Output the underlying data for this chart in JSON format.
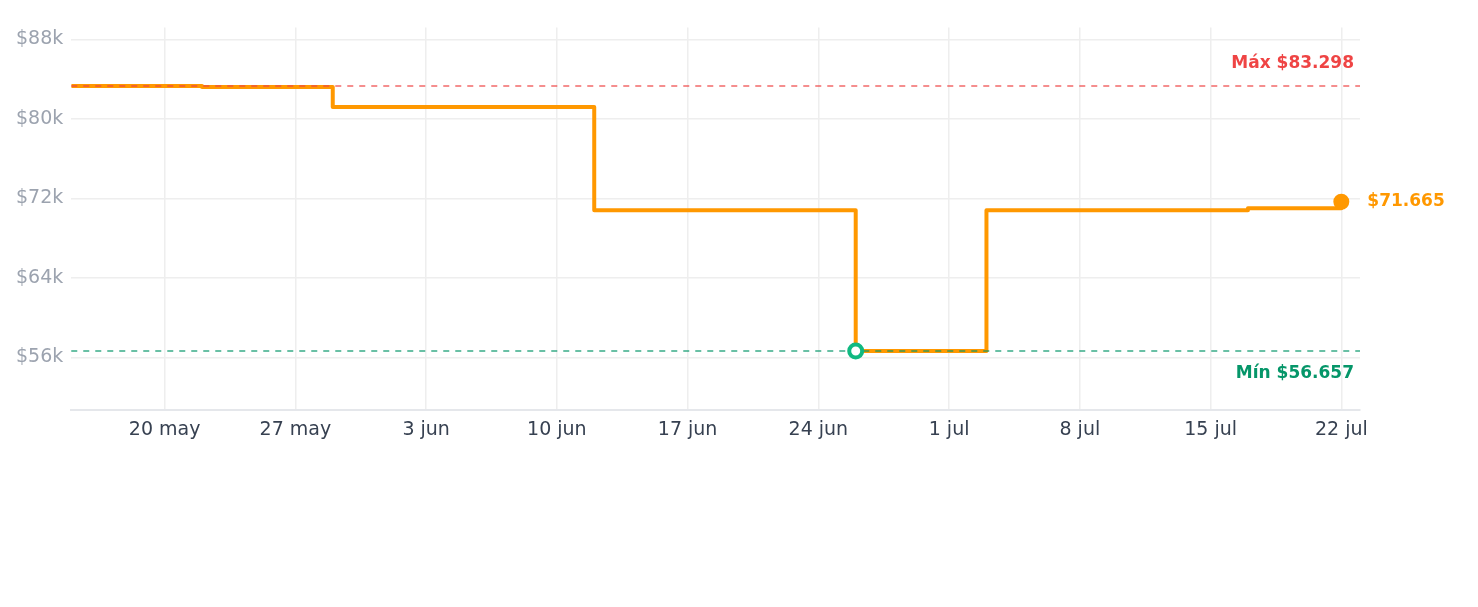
{
  "chart_data": {
    "type": "step",
    "x": [
      "--05-15",
      "--05-22",
      "--05-29",
      "--06-12",
      "--06-26",
      "--07-03",
      "--07-17",
      "--07-22"
    ],
    "series": [
      {
        "color": "#ff9800",
        "values": [
          83298,
          83200,
          81200,
          70800,
          56657,
          70800,
          71000,
          71665
        ],
        "value_labels": [
          null,
          null,
          null,
          null,
          null,
          null,
          null,
          "$71.665"
        ]
      }
    ],
    "xlim": [
      "--05-15",
      "--07-23"
    ],
    "xticks": [
      {
        "value": "--05-20",
        "label": "20 may"
      },
      {
        "value": "--05-27",
        "label": "27 may"
      },
      {
        "value": "--06-03",
        "label": "3 jun"
      },
      {
        "value": "--06-10",
        "label": "10 jun"
      },
      {
        "value": "--06-17",
        "label": "17 jun"
      },
      {
        "value": "--06-24",
        "label": "24 jun"
      },
      {
        "value": "--07-01",
        "label": "1 jul"
      },
      {
        "value": "--07-08",
        "label": "8 jul"
      },
      {
        "value": "--07-15",
        "label": "15 jul"
      },
      {
        "value": "--07-22",
        "label": "22 jul"
      }
    ],
    "ylim": [
      50700,
      89200
    ],
    "yticks": [
      {
        "value": 56000,
        "label": "$56k"
      },
      {
        "value": 64000,
        "label": "$64k"
      },
      {
        "value": 72000,
        "label": "$72k"
      },
      {
        "value": 80000,
        "label": "$80k"
      },
      {
        "value": 88000,
        "label": "$88k"
      }
    ],
    "ref_lines": [
      {
        "axis": "y",
        "value": 83298,
        "label": "Máx $83.298",
        "color": "#ef4444",
        "line_style": "dashed"
      },
      {
        "axis": "y",
        "value": 56657,
        "label": "Mín $56.657",
        "color": "#059669",
        "line_style": "dashed"
      }
    ],
    "grid": true,
    "legend": false,
    "marker": "none",
    "line_style": "solid"
  }
}
